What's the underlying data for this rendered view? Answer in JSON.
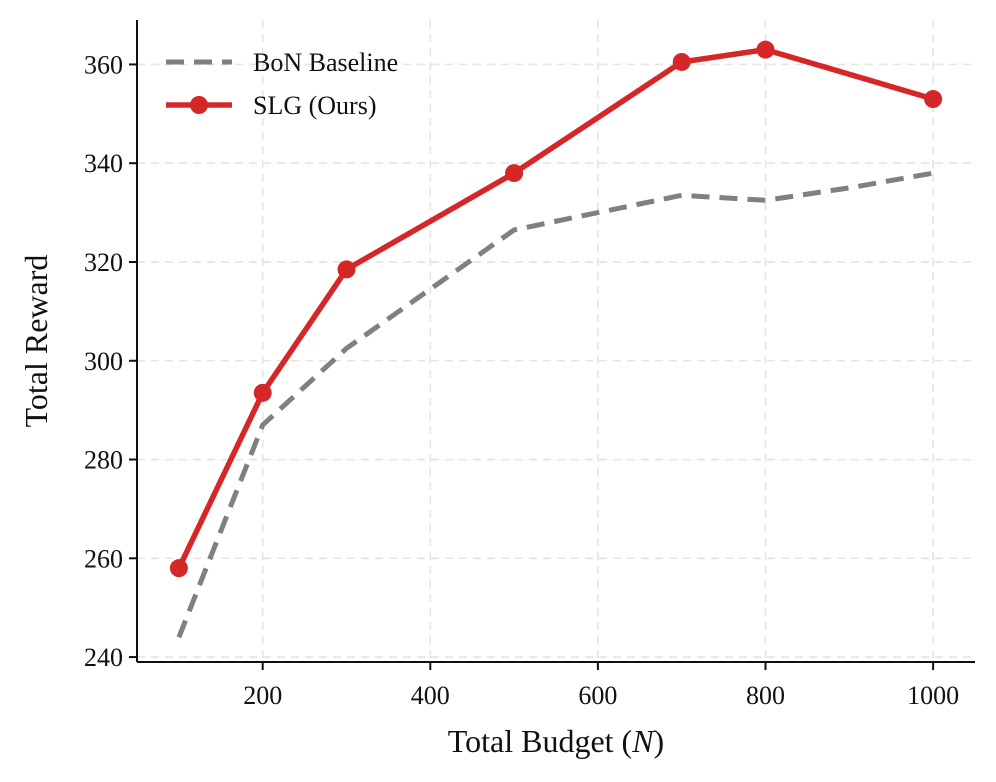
{
  "chart_data": {
    "type": "line",
    "title": "",
    "xlabel": "Total Budget (N)",
    "xlabel_prefix": "Total Budget (",
    "xlabel_var": "N",
    "xlabel_suffix": ")",
    "ylabel": "Total Reward",
    "xlim": [
      50,
      1050
    ],
    "ylim": [
      239,
      369
    ],
    "xticks": [
      200,
      400,
      600,
      800,
      1000
    ],
    "yticks": [
      240,
      260,
      280,
      300,
      320,
      340,
      360
    ],
    "grid": true,
    "legend_position": "top-left",
    "series": [
      {
        "name": "BoN Baseline",
        "color": "#808080",
        "style": "dashed",
        "marker": "none",
        "x": [
          100,
          200,
          300,
          400,
          500,
          600,
          700,
          800,
          900,
          1000
        ],
        "y": [
          244,
          287,
          302.5,
          314.5,
          326.5,
          330,
          333.5,
          332.5,
          335,
          338
        ]
      },
      {
        "name": "SLG (Ours)",
        "color": "#d62728",
        "style": "solid",
        "marker": "circle",
        "x": [
          100,
          200,
          300,
          500,
          700,
          800,
          1000
        ],
        "y": [
          258,
          293.5,
          318.5,
          338,
          360.5,
          363,
          353
        ]
      }
    ]
  }
}
